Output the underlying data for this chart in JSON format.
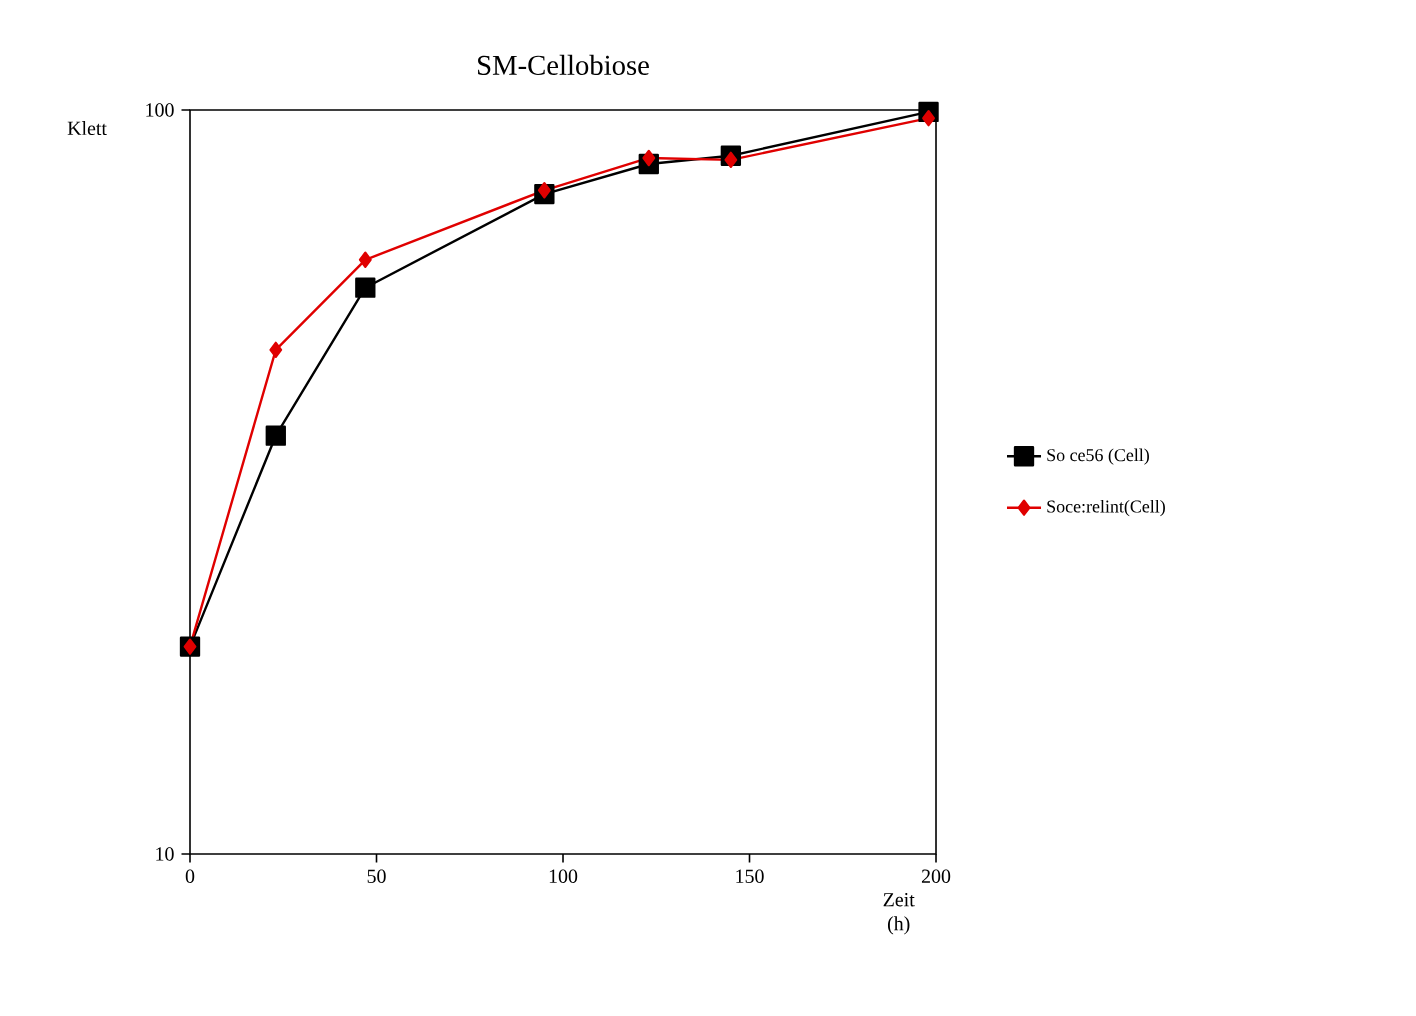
{
  "chart_data": {
    "type": "line",
    "title": "SM-Cellobiose",
    "xlabel": "Zeit (h)",
    "ylabel": "Klett",
    "x": [
      0,
      23,
      47,
      95,
      123,
      145,
      198
    ],
    "series": [
      {
        "name": "So ce56 (Cell)",
        "color": "#000000",
        "marker": "square",
        "values": [
          19.0,
          36.5,
          57.7,
          77.1,
          84.6,
          86.8,
          99.4
        ]
      },
      {
        "name": "Soce:relint(Cell)",
        "color": "#e00000",
        "marker": "diamond",
        "values": [
          19.0,
          47.6,
          62.9,
          78.0,
          86.2,
          85.7,
          97.5
        ]
      }
    ],
    "xlim": [
      0,
      200
    ],
    "ylim": [
      10,
      100
    ],
    "xticks": [
      0,
      50,
      100,
      150,
      200
    ],
    "yticks": [
      10,
      100
    ],
    "log": "y",
    "grid": false,
    "legend": "right",
    "line_style": "solid"
  }
}
